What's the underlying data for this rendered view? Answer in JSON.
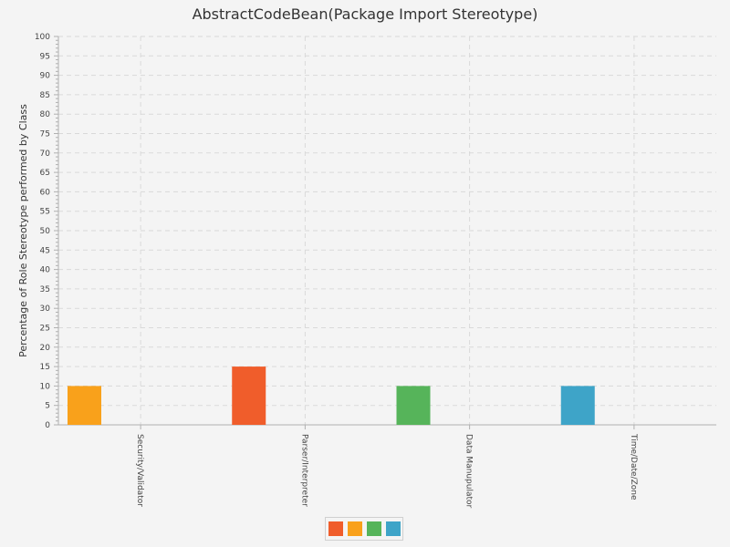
{
  "title": "AbstractCodeBean(Package Import Stereotype)",
  "chart_data": {
    "type": "bar",
    "title": "AbstractCodeBean(Package Import Stereotype)",
    "xlabel": "",
    "ylabel": "Percentage of Role Stereotype performed by Class",
    "categories": [
      "Security/Validator",
      "Parser/Interpreter",
      "Data Manupulator",
      "Time/Date/Zone"
    ],
    "values": [
      10,
      15,
      10,
      10
    ],
    "bar_colors": [
      "#f9a11b",
      "#f05d2b",
      "#56b45a",
      "#3ea4c8"
    ],
    "ylim": [
      0,
      100
    ],
    "ytick_step": 5,
    "grid": true,
    "legend": {
      "position": "bottom-center",
      "swatches": [
        "#f05d2b",
        "#f9a11b",
        "#56b45a",
        "#3ea4c8"
      ]
    }
  }
}
